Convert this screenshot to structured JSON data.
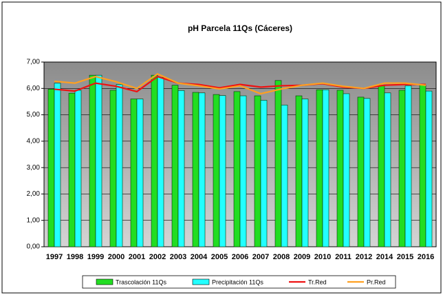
{
  "chart_data": {
    "type": "bar",
    "title": "pH Parcela 11Qs (Cáceres)",
    "categories": [
      "1997",
      "1998",
      "1999",
      "2000",
      "2001",
      "2002",
      "2003",
      "2004",
      "2005",
      "2006",
      "2007",
      "2008",
      "2009",
      "2010",
      "2011",
      "2012",
      "2014",
      "2015",
      "2016"
    ],
    "series": [
      {
        "name": "Trascolación 11Qs",
        "type": "bar",
        "color": "#22dd22",
        "values": [
          5.97,
          5.82,
          6.5,
          5.93,
          5.6,
          6.5,
          6.12,
          5.85,
          5.77,
          5.88,
          5.72,
          6.3,
          5.72,
          5.95,
          5.93,
          5.67,
          6.12,
          5.93,
          6.12
        ]
      },
      {
        "name": "Precipitación 11Qs",
        "type": "bar",
        "color": "#22ffff",
        "values": [
          6.2,
          5.93,
          6.5,
          6.15,
          5.6,
          6.42,
          5.92,
          5.83,
          5.73,
          5.72,
          5.55,
          5.37,
          5.6,
          5.95,
          5.8,
          5.62,
          5.83,
          6.1,
          5.9
        ]
      },
      {
        "name": "Tr.Red",
        "type": "line",
        "color": "#ee1111",
        "values": [
          5.97,
          5.9,
          6.2,
          6.08,
          5.88,
          6.45,
          6.2,
          6.15,
          6.02,
          6.15,
          6.05,
          6.1,
          6.12,
          6.18,
          6.05,
          6.0,
          6.12,
          6.15,
          6.15
        ]
      },
      {
        "name": "Pr.Red",
        "type": "line",
        "color": "#ffa020",
        "values": [
          6.27,
          6.2,
          6.45,
          6.25,
          6.0,
          6.55,
          6.2,
          6.1,
          5.98,
          6.1,
          5.8,
          5.98,
          6.12,
          6.2,
          6.08,
          6.0,
          6.2,
          6.2,
          6.12
        ]
      }
    ],
    "ylim": [
      0,
      7
    ],
    "yticks": [
      {
        "value": 0,
        "label": "0,00"
      },
      {
        "value": 1,
        "label": "1,00"
      },
      {
        "value": 2,
        "label": "2,00"
      },
      {
        "value": 3,
        "label": "3,00"
      },
      {
        "value": 4,
        "label": "4,00"
      },
      {
        "value": 5,
        "label": "5,00"
      },
      {
        "value": 6,
        "label": "6,00"
      },
      {
        "value": 7,
        "label": "7,00"
      }
    ],
    "grid": true,
    "legend": "bottom"
  }
}
